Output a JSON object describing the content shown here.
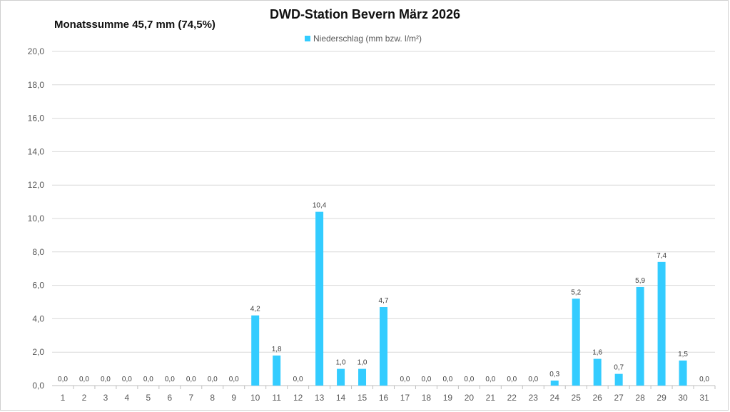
{
  "chart_data": {
    "type": "bar",
    "title": "DWD-Station Bevern März 2026",
    "subtitle": "Monatssumme 45,7 mm (74,5%)",
    "legend": {
      "position": "top",
      "entries": [
        "Niederschlag (mm bzw. l/m²)"
      ]
    },
    "grid": true,
    "ylim": [
      0,
      20
    ],
    "yticks": [
      "0,0",
      "2,0",
      "4,0",
      "6,0",
      "8,0",
      "10,0",
      "12,0",
      "14,0",
      "16,0",
      "18,0",
      "20,0"
    ],
    "categories": [
      "1",
      "2",
      "3",
      "4",
      "5",
      "6",
      "7",
      "8",
      "9",
      "10",
      "11",
      "12",
      "13",
      "14",
      "15",
      "16",
      "17",
      "18",
      "19",
      "20",
      "21",
      "22",
      "23",
      "24",
      "25",
      "26",
      "27",
      "28",
      "29",
      "30",
      "31"
    ],
    "series": [
      {
        "name": "Niederschlag (mm bzw. l/m²)",
        "color": "#33ccff",
        "values": [
          0,
          0,
          0,
          0,
          0,
          0,
          0,
          0,
          0,
          4.2,
          1.8,
          0,
          10.4,
          1.0,
          1.0,
          4.7,
          0,
          0,
          0,
          0,
          0,
          0,
          0,
          0.3,
          5.2,
          1.6,
          0.7,
          5.9,
          7.4,
          1.5,
          0
        ],
        "labels": [
          "0,0",
          "0,0",
          "0,0",
          "0,0",
          "0,0",
          "0,0",
          "0,0",
          "0,0",
          "0,0",
          "4,2",
          "1,8",
          "0,0",
          "10,4",
          "1,0",
          "1,0",
          "4,7",
          "0,0",
          "0,0",
          "0,0",
          "0,0",
          "0,0",
          "0,0",
          "0,0",
          "0,3",
          "5,2",
          "1,6",
          "0,7",
          "5,9",
          "7,4",
          "1,5",
          "0,0"
        ]
      }
    ]
  }
}
